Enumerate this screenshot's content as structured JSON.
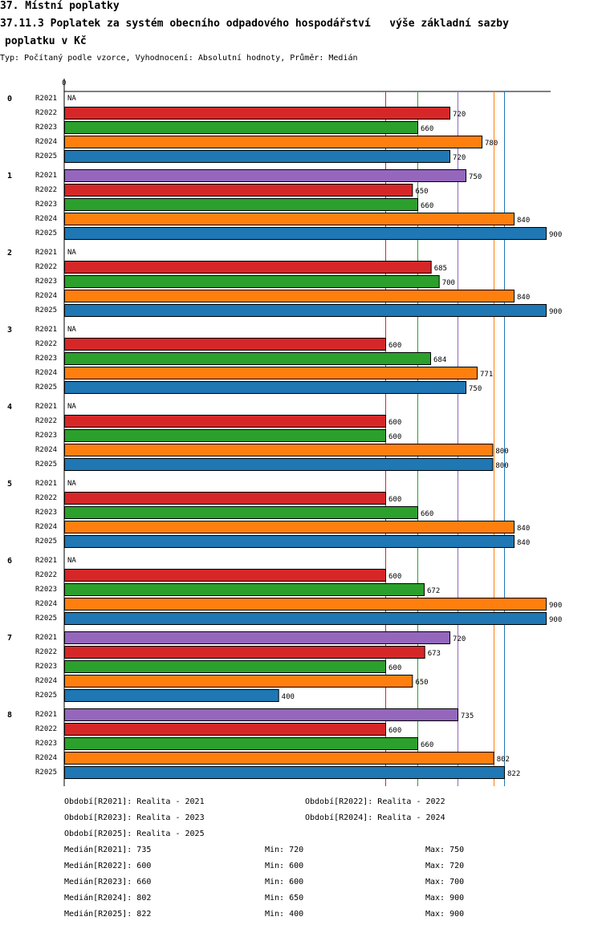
{
  "title_line1": "37. Místní poplatky",
  "title_line2": "37.11.3 Poplatek za systém obecního odpadového hospodářství   výše základní sazby",
  "title_line3": "poplatku v Kč",
  "subtitle": "Typ: Počítaný podle vzorce, Vyhodnocení: Absolutní hodnoty, Průměr: Medián",
  "chart_data": {
    "type": "bar",
    "orientation": "horizontal",
    "axis_zero_label": "0",
    "xlim": [
      0,
      900
    ],
    "na_label": "NA",
    "categories": [
      "0",
      "1",
      "2",
      "3",
      "4",
      "5",
      "6",
      "7",
      "8"
    ],
    "series": [
      {
        "name": "R2021",
        "color": "#9467bd",
        "values": [
          null,
          750,
          null,
          null,
          null,
          null,
          null,
          720,
          735
        ]
      },
      {
        "name": "R2022",
        "color": "#d62728",
        "values": [
          720,
          650,
          685,
          600,
          600,
          600,
          600,
          673,
          600
        ]
      },
      {
        "name": "R2023",
        "color": "#2ca02c",
        "values": [
          660,
          660,
          700,
          684,
          600,
          660,
          672,
          600,
          660
        ]
      },
      {
        "name": "R2024",
        "color": "#ff7f0e",
        "values": [
          780,
          840,
          840,
          771,
          800,
          840,
          900,
          650,
          802
        ]
      },
      {
        "name": "R2025",
        "color": "#1f77b4",
        "values": [
          720,
          900,
          900,
          750,
          800,
          840,
          900,
          400,
          822
        ]
      }
    ],
    "reference_lines": [
      {
        "series": "R2021",
        "value": 735,
        "color": "#9467bd"
      },
      {
        "series": "R2022",
        "value": 600,
        "color": "#d62728"
      },
      {
        "series": "R2023",
        "value": 660,
        "color": "#2ca02c"
      },
      {
        "series": "R2024",
        "value": 802,
        "color": "#ff7f0e"
      },
      {
        "series": "R2025",
        "value": 822,
        "color": "#1f77b4"
      }
    ]
  },
  "legend": {
    "periods": [
      "Období[R2021]: Realita - 2021",
      "Období[R2022]: Realita - 2022",
      "Období[R2023]: Realita - 2023",
      "Období[R2024]: Realita - 2024",
      "Období[R2025]: Realita - 2025"
    ],
    "stats": [
      {
        "median": "Medián[R2021]: 735",
        "min": "Min: 720",
        "max": "Max: 750"
      },
      {
        "median": "Medián[R2022]: 600",
        "min": "Min: 600",
        "max": "Max: 720"
      },
      {
        "median": "Medián[R2023]: 660",
        "min": "Min: 600",
        "max": "Max: 700"
      },
      {
        "median": "Medián[R2024]: 802",
        "min": "Min: 650",
        "max": "Max: 900"
      },
      {
        "median": "Medián[R2025]: 822",
        "min": "Min: 400",
        "max": "Max: 900"
      }
    ]
  }
}
